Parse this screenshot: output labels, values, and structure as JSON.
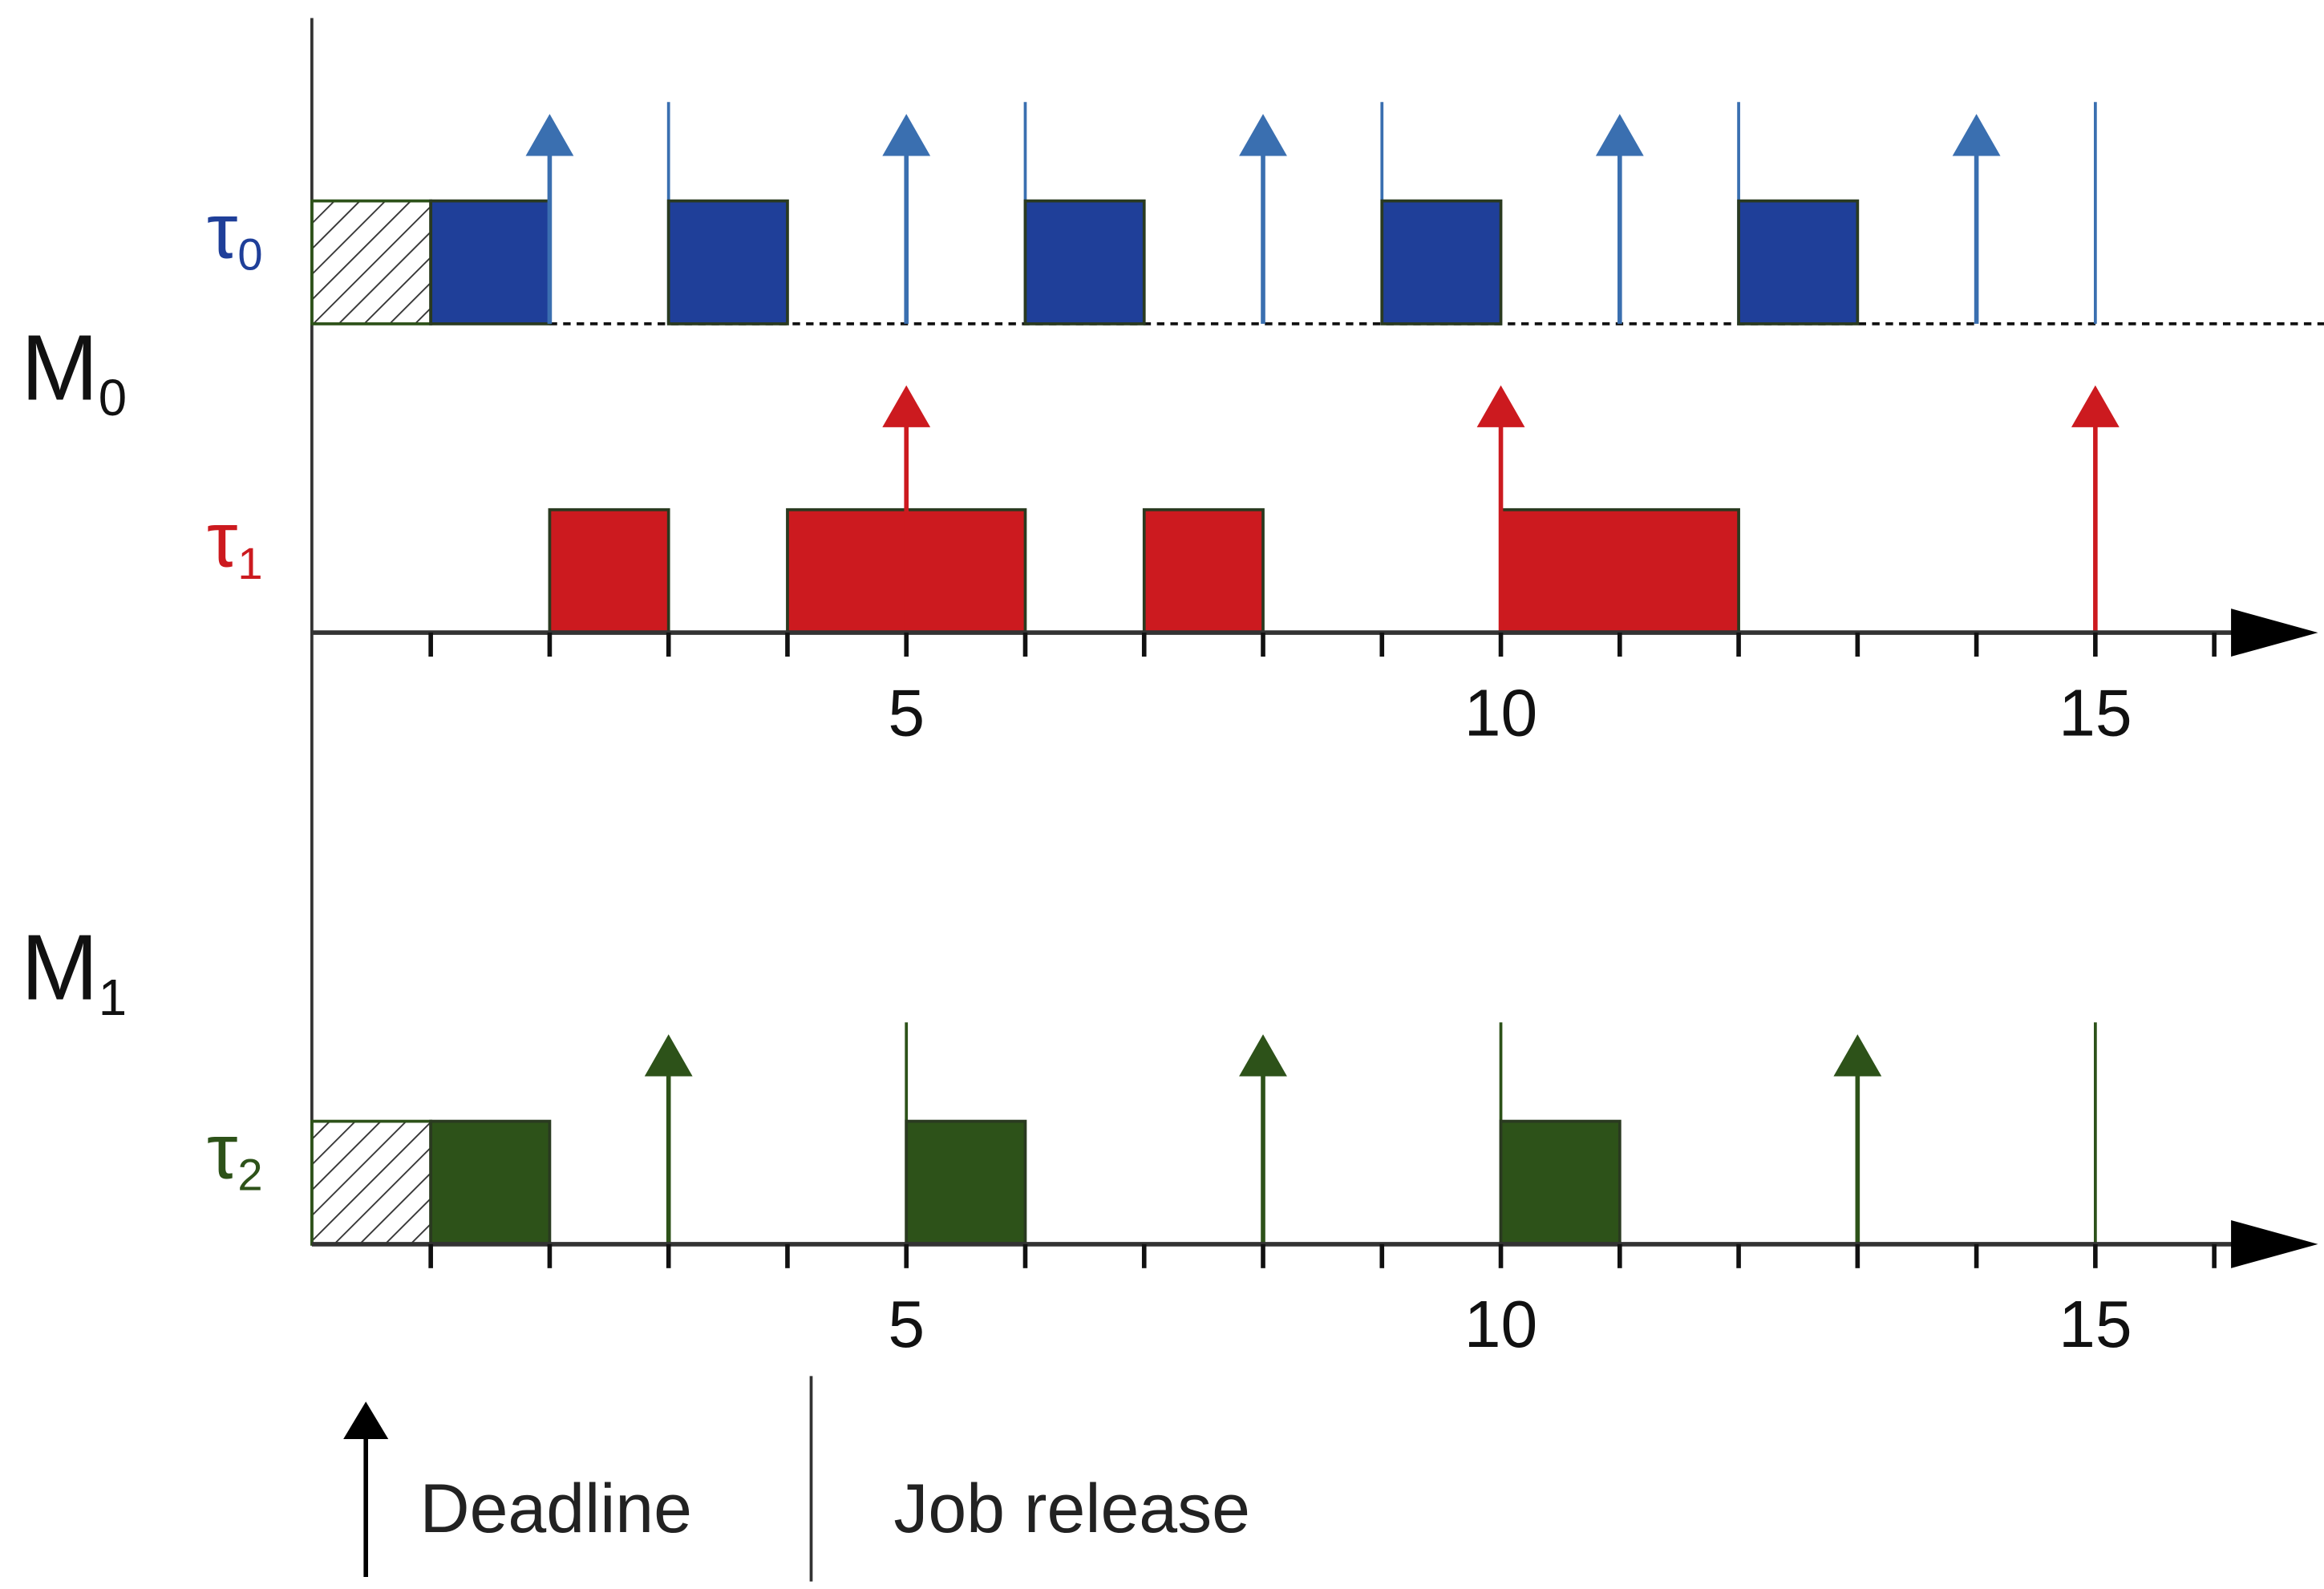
{
  "machines": [
    {
      "name": "M",
      "index": "0",
      "tasks": [
        {
          "name": "τ",
          "index": "0",
          "color": "#1f3f99",
          "marker_color": "#3a6fb0",
          "blocked": [
            [
              0,
              1
            ]
          ],
          "jobs": [
            [
              1,
              2
            ],
            [
              3,
              4
            ],
            [
              6,
              7
            ],
            [
              9,
              10
            ],
            [
              12,
              13
            ]
          ],
          "deadlines": [
            2,
            5,
            8,
            11,
            14
          ],
          "releases": [
            3,
            6,
            9,
            12,
            15
          ]
        },
        {
          "name": "τ",
          "index": "1",
          "color": "#cc1a1f",
          "marker_color": "#cc1a1f",
          "blocked": [],
          "jobs": [
            [
              2,
              3
            ],
            [
              4,
              6
            ],
            [
              7,
              8
            ],
            [
              10,
              12
            ]
          ],
          "deadlines": [
            5,
            10,
            15
          ],
          "releases": []
        }
      ],
      "axis": {
        "xlim": [
          0,
          16.5
        ],
        "ticks": [
          1,
          2,
          3,
          4,
          5,
          6,
          7,
          8,
          9,
          10,
          11,
          12,
          13,
          14,
          15,
          16
        ],
        "tick_labels": [
          5,
          10,
          15
        ]
      }
    },
    {
      "name": "M",
      "index": "1",
      "tasks": [
        {
          "name": "τ",
          "index": "2",
          "color": "#2d5219",
          "marker_color": "#2d5219",
          "blocked": [
            [
              0,
              1
            ]
          ],
          "jobs": [
            [
              1,
              2
            ],
            [
              5,
              6
            ],
            [
              10,
              11
            ]
          ],
          "deadlines": [
            3,
            8,
            13
          ],
          "releases": [
            5,
            10,
            15
          ]
        }
      ],
      "axis": {
        "xlim": [
          0,
          16.5
        ],
        "ticks": [
          1,
          2,
          3,
          4,
          5,
          6,
          7,
          8,
          9,
          10,
          11,
          12,
          13,
          14,
          15,
          16
        ],
        "tick_labels": [
          5,
          10,
          15
        ]
      }
    }
  ],
  "legend": {
    "deadline": "Deadline",
    "release": "Job release"
  }
}
